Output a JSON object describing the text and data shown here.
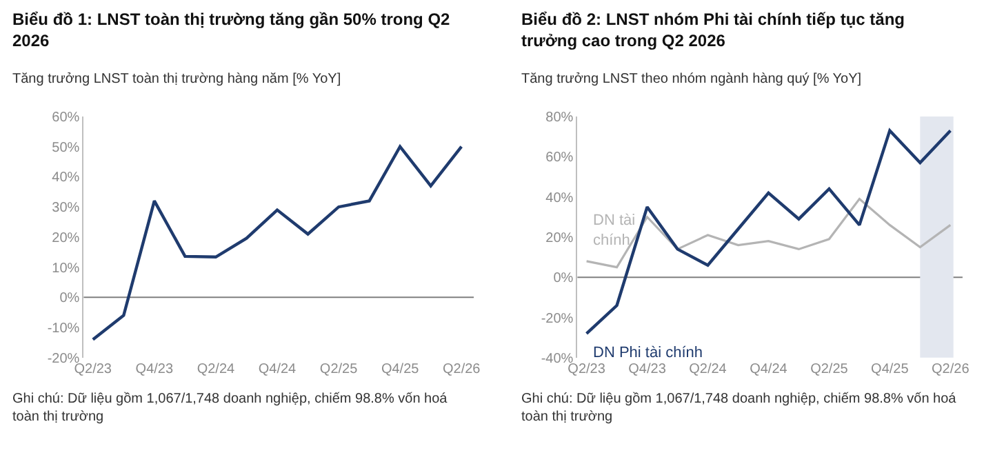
{
  "chart_data": [
    {
      "type": "line",
      "title": "Biểu đồ 1: LNST toàn thị trường tăng gần 50% trong Q2 2026",
      "subtitle": "Tăng trưởng LNST toàn thị trường hàng năm [% YoY]",
      "categories": [
        "Q2/23",
        null,
        "Q4/23",
        null,
        "Q2/24",
        null,
        "Q4/24",
        null,
        "Q2/25",
        null,
        "Q4/25",
        null,
        "Q2/26"
      ],
      "series": [
        {
          "color": "#1f3b6e",
          "values": [
            -14,
            -6,
            32,
            13.6,
            13.4,
            19.6,
            29,
            21,
            30,
            32,
            50,
            37,
            50
          ]
        }
      ],
      "ylim": [
        -20,
        60
      ],
      "yticks": [
        {
          "value": -20,
          "label": "-20%"
        },
        {
          "value": -10,
          "label": "-10%"
        },
        {
          "value": 0,
          "label": "0%"
        },
        {
          "value": 10,
          "label": "10%"
        },
        {
          "value": 20,
          "label": "20%"
        },
        {
          "value": 30,
          "label": "30%"
        },
        {
          "value": 40,
          "label": "40%"
        },
        {
          "value": 50,
          "label": "50%"
        },
        {
          "value": 60,
          "label": "60%"
        }
      ],
      "ref_lines": [
        {
          "axis": "y",
          "value": 0,
          "color": "#7f7f7f"
        }
      ],
      "grid": false,
      "legend": false,
      "annotations": [
        "Ghi chú: Dữ liệu gồm 1,067/1,748 doanh nghiệp, chiếm 98.8% vốn hoá toàn thị trường"
      ]
    },
    {
      "type": "line",
      "title": "Biểu đồ 2: LNST nhóm Phi tài chính tiếp tục tăng trưởng cao trong Q2 2026",
      "subtitle": "Tăng trưởng LNST theo nhóm ngành hàng quý [% YoY]",
      "categories": [
        "Q2/23",
        null,
        "Q4/23",
        null,
        "Q2/24",
        null,
        "Q4/24",
        null,
        "Q2/25",
        null,
        "Q4/25",
        null,
        "Q2/26"
      ],
      "series": [
        {
          "name": "DN tài chính",
          "color": "#b4b4b4",
          "values": [
            8,
            5,
            30,
            14,
            21,
            16,
            18,
            14,
            19,
            39,
            26,
            15,
            26
          ]
        },
        {
          "name": "DN Phi tài chính",
          "color": "#1f3b6e",
          "values": [
            -28,
            -14,
            35,
            14,
            6,
            24,
            42,
            29,
            44,
            26,
            73,
            57,
            73
          ]
        }
      ],
      "ylim": [
        -40,
        80
      ],
      "yticks": [
        {
          "value": -40,
          "label": "-40%"
        },
        {
          "value": -20,
          "label": "-20%"
        },
        {
          "value": 0,
          "label": "0%"
        },
        {
          "value": 20,
          "label": "20%"
        },
        {
          "value": 40,
          "label": "40%"
        },
        {
          "value": 60,
          "label": "60%"
        },
        {
          "value": 80,
          "label": "80%"
        }
      ],
      "ref_lines": [
        {
          "axis": "y",
          "value": 0,
          "color": "#7f7f7f"
        }
      ],
      "grid": false,
      "legend": false,
      "annotations": [
        "Ghi chú: Dữ liệu gồm 1,067/1,748 doanh nghiệp, chiếm 98.8% vốn hoá toàn thị trường"
      ]
    }
  ]
}
